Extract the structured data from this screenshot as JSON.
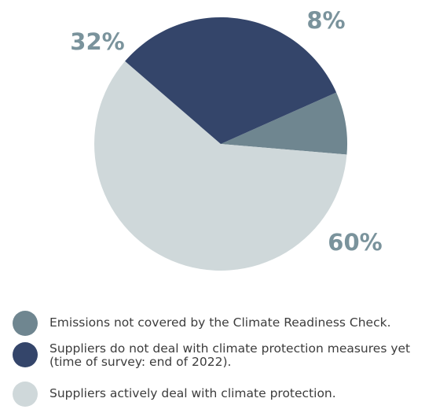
{
  "chart_data": {
    "type": "pie",
    "slices": [
      {
        "label": "Emissions not covered by the Climate Readiness Check.",
        "value": 8,
        "value_label": "8%",
        "color": "#6f8690"
      },
      {
        "label": "Suppliers actively deal with climate protection.",
        "value": 60,
        "value_label": "60%",
        "color": "#cfd8da"
      },
      {
        "label": "Suppliers do not deal with climate protection measures yet (time of survey: end of 2022).",
        "value": 32,
        "value_label": "32%",
        "color": "#34456a"
      }
    ],
    "legend": {
      "position": "bottom",
      "items": [
        {
          "text": "Emissions not covered by the Climate Readiness Check.",
          "color": "#6f8690"
        },
        {
          "text": "Suppliers do not deal with climate protection measures yet (time of survey: end of 2022).",
          "color": "#34456a"
        },
        {
          "text": "Suppliers actively deal with climate protection.",
          "color": "#cfd8da"
        }
      ]
    },
    "label_color": "#7a939c"
  }
}
